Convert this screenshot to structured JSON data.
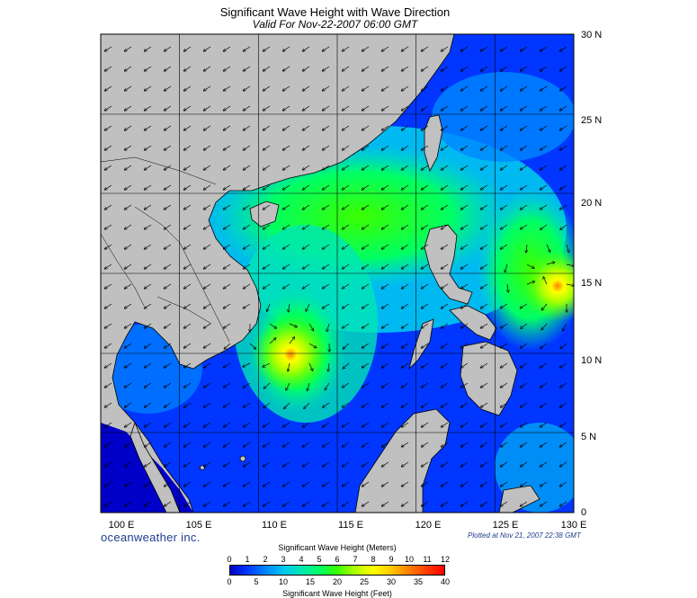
{
  "header": {
    "title": "Significant Wave Height with Wave Direction",
    "subtitle": "Valid For Nov-22-2007 06:00 GMT"
  },
  "map": {
    "lon_range": [
      100,
      130
    ],
    "lat_range": [
      0,
      30
    ],
    "lon_labels": [
      "100 E",
      "105 E",
      "110 E",
      "115 E",
      "120 E",
      "125 E",
      "130 E"
    ],
    "lat_labels": [
      "0",
      "5 N",
      "10 N",
      "15 N",
      "20 N",
      "25 N",
      "30 N"
    ],
    "land_color": "#c0c0c0",
    "max_hotspots": [
      {
        "lon": 111.0,
        "lat": 10.3,
        "level_m": 9.5
      },
      {
        "lon": 128.5,
        "lat": 14.8,
        "level_m": 9.5
      }
    ]
  },
  "footer": {
    "brand": "oceanweather inc.",
    "plotted": "Plotted at Nov 21, 2007 22:38 GMT"
  },
  "colorbar": {
    "title_top": "Significant Wave Height (Meters)",
    "title_bottom": "Significant Wave Height (Feet)",
    "meters_ticks": [
      "0",
      "1",
      "2",
      "3",
      "4",
      "5",
      "6",
      "7",
      "8",
      "9",
      "10",
      "11",
      "12"
    ],
    "feet_ticks": [
      "0",
      "5",
      "10",
      "15",
      "20",
      "25",
      "30",
      "35",
      "40"
    ],
    "colors": [
      "#0000c8",
      "#0036ff",
      "#0088ff",
      "#00c8f0",
      "#00e6b4",
      "#00ff64",
      "#3cff00",
      "#aaff00",
      "#ffff00",
      "#ffc800",
      "#ff8200",
      "#ff3c00",
      "#ff0000"
    ]
  }
}
